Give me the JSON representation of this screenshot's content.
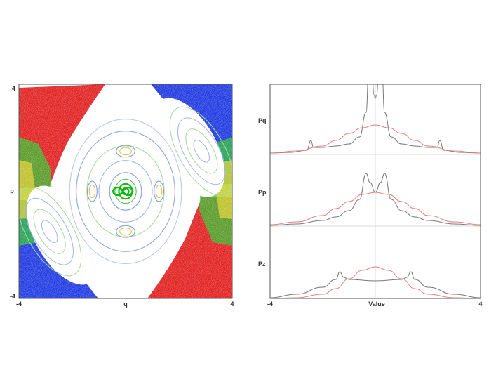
{
  "chart_data": [
    {
      "type": "scatter",
      "title": "",
      "xlabel": "q",
      "ylabel": "p",
      "xlim": [
        -4,
        4
      ],
      "ylim": [
        -4,
        4
      ],
      "x_ticks": [
        "-4",
        "4"
      ],
      "y_ticks": [
        "4",
        "-4"
      ],
      "grid": false,
      "description_colors": [
        "#e01010",
        "#1530e0",
        "#20c020",
        "#ffd000",
        "#d0d8f0"
      ],
      "orbits": {
        "center": [
          [
            0.12,
            0.12
          ],
          [
            0.25,
            0.28
          ],
          [
            0.4,
            0.45
          ],
          [
            0.6,
            0.7
          ],
          [
            1.0,
            1.15
          ],
          [
            1.45,
            1.7
          ],
          [
            1.85,
            2.25
          ],
          [
            2.1,
            2.7
          ]
        ],
        "islands": [
          [
            0,
            1.5
          ],
          [
            0,
            -1.5
          ],
          [
            1.25,
            0
          ],
          [
            -1.25,
            0
          ]
        ],
        "outer_islands": [
          [
            2.85,
            1.5
          ],
          [
            -2.85,
            -1.5
          ]
        ]
      }
    },
    {
      "type": "line",
      "title": "",
      "xlabel": "Value",
      "xlim": [
        -4,
        4
      ],
      "x_ticks": [
        "-4",
        "4"
      ],
      "panels": [
        {
          "label": "Pq",
          "series": [
            {
              "color": "#777777",
              "x": [
                -4,
                -3.2,
                -2.6,
                -2.45,
                -2.35,
                -2,
                -1.5,
                -1,
                -0.6,
                -0.35,
                -0.25,
                -0.15,
                -0.05,
                0,
                0.05,
                0.15,
                0.25,
                0.35,
                0.6,
                1,
                1.5,
                2,
                2.35,
                2.45,
                2.6,
                3.2,
                4
              ],
              "y": [
                0.02,
                0.03,
                0.06,
                0.2,
                0.1,
                0.1,
                0.12,
                0.15,
                0.25,
                0.6,
                1.2,
                1.4,
                0.85,
                0.8,
                0.85,
                1.4,
                1.2,
                0.6,
                0.25,
                0.15,
                0.12,
                0.1,
                0.1,
                0.2,
                0.06,
                0.03,
                0.02
              ]
            },
            {
              "color": "#e88080",
              "x": [
                -4,
                -3,
                -2,
                -1.5,
                -1,
                -0.5,
                0,
                0.5,
                1,
                1.5,
                2,
                3,
                4
              ],
              "y": [
                0.02,
                0.05,
                0.12,
                0.2,
                0.3,
                0.38,
                0.42,
                0.38,
                0.3,
                0.2,
                0.12,
                0.05,
                0.02
              ]
            }
          ]
        },
        {
          "label": "Pp",
          "series": [
            {
              "color": "#777777",
              "x": [
                -4,
                -3,
                -2,
                -1.5,
                -1,
                -0.6,
                -0.35,
                -0.2,
                0,
                0.2,
                0.35,
                0.6,
                1,
                1.5,
                2,
                3,
                4
              ],
              "y": [
                0.01,
                0.03,
                0.08,
                0.13,
                0.22,
                0.38,
                0.75,
                0.62,
                0.48,
                0.62,
                0.75,
                0.38,
                0.22,
                0.13,
                0.08,
                0.03,
                0.01
              ]
            },
            {
              "color": "#e88080",
              "x": [
                -4,
                -3,
                -2,
                -1.5,
                -1,
                -0.5,
                0,
                0.5,
                1,
                1.5,
                2,
                3,
                4
              ],
              "y": [
                0.02,
                0.06,
                0.15,
                0.25,
                0.35,
                0.45,
                0.48,
                0.45,
                0.35,
                0.25,
                0.15,
                0.06,
                0.02
              ]
            }
          ]
        },
        {
          "label": "Pz",
          "series": [
            {
              "color": "#777777",
              "x": [
                -4,
                -3,
                -2,
                -1.5,
                -1.35,
                -1.2,
                -1,
                0,
                1,
                1.2,
                1.35,
                1.5,
                2,
                3,
                4
              ],
              "y": [
                0.01,
                0.06,
                0.16,
                0.27,
                0.38,
                0.3,
                0.27,
                0.25,
                0.27,
                0.3,
                0.38,
                0.27,
                0.16,
                0.06,
                0.01
              ]
            },
            {
              "color": "#e88080",
              "x": [
                -4,
                -3,
                -2,
                -1.5,
                -1,
                -0.5,
                0,
                0.5,
                1,
                1.5,
                2,
                3,
                4
              ],
              "y": [
                0.0,
                0.01,
                0.06,
                0.14,
                0.28,
                0.4,
                0.45,
                0.4,
                0.28,
                0.14,
                0.06,
                0.01,
                0.0
              ]
            }
          ]
        }
      ]
    }
  ]
}
